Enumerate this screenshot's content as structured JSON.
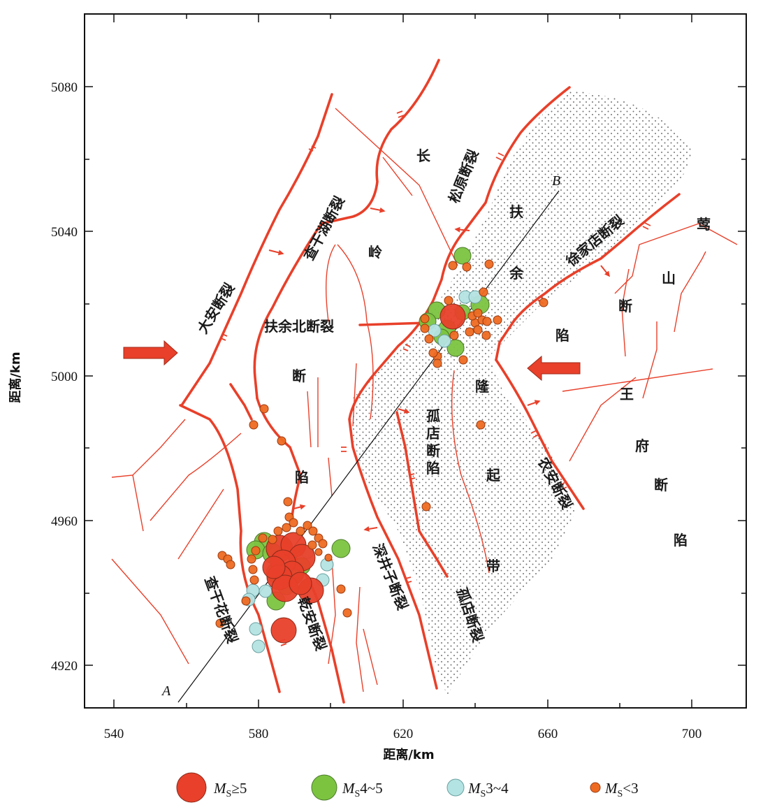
{
  "axes": {
    "xlabel": "距离/km",
    "ylabel": "距离/km",
    "xticks": [
      "540",
      "580",
      "620",
      "660",
      "700"
    ],
    "yticks": [
      "5080",
      "5040",
      "5000",
      "4960",
      "4920"
    ]
  },
  "fault_labels": [
    {
      "text": "大安断裂"
    },
    {
      "text": "查干湖断裂"
    },
    {
      "text": "扶余北断裂"
    },
    {
      "text": "松原断裂"
    },
    {
      "text": "徐家店断裂"
    },
    {
      "text": "孤店断陷"
    },
    {
      "text": "农安断裂"
    },
    {
      "text": "深井子断裂"
    },
    {
      "text": "孤店断裂"
    },
    {
      "text": "查干花断裂"
    },
    {
      "text": "乾安断裂"
    }
  ],
  "region_chars": {
    "changling": [
      "长",
      "岭",
      "断",
      "陷"
    ],
    "fuyu": [
      "扶",
      "余",
      "隆",
      "起",
      "带"
    ],
    "yingshan": [
      "莺",
      "山",
      "断",
      "陷"
    ],
    "wangfu": [
      "王",
      "府",
      "断",
      "陷"
    ]
  },
  "profile": {
    "start": "A",
    "end": "B"
  },
  "legend": [
    {
      "prefix": "M",
      "sub": "S",
      "suffix": "≥5",
      "color": "#e8402a"
    },
    {
      "prefix": "M",
      "sub": "S",
      "suffix": "4~5",
      "color": "#7cc440"
    },
    {
      "prefix": "M",
      "sub": "S",
      "suffix": "3~4",
      "color": "#b4e3e3"
    },
    {
      "prefix": "M",
      "sub": "S",
      "suffix": "<3",
      "color": "#ee6a22"
    }
  ],
  "colors": {
    "fault": "#e8402a",
    "frame": "#111111",
    "stipple": "#777777"
  }
}
